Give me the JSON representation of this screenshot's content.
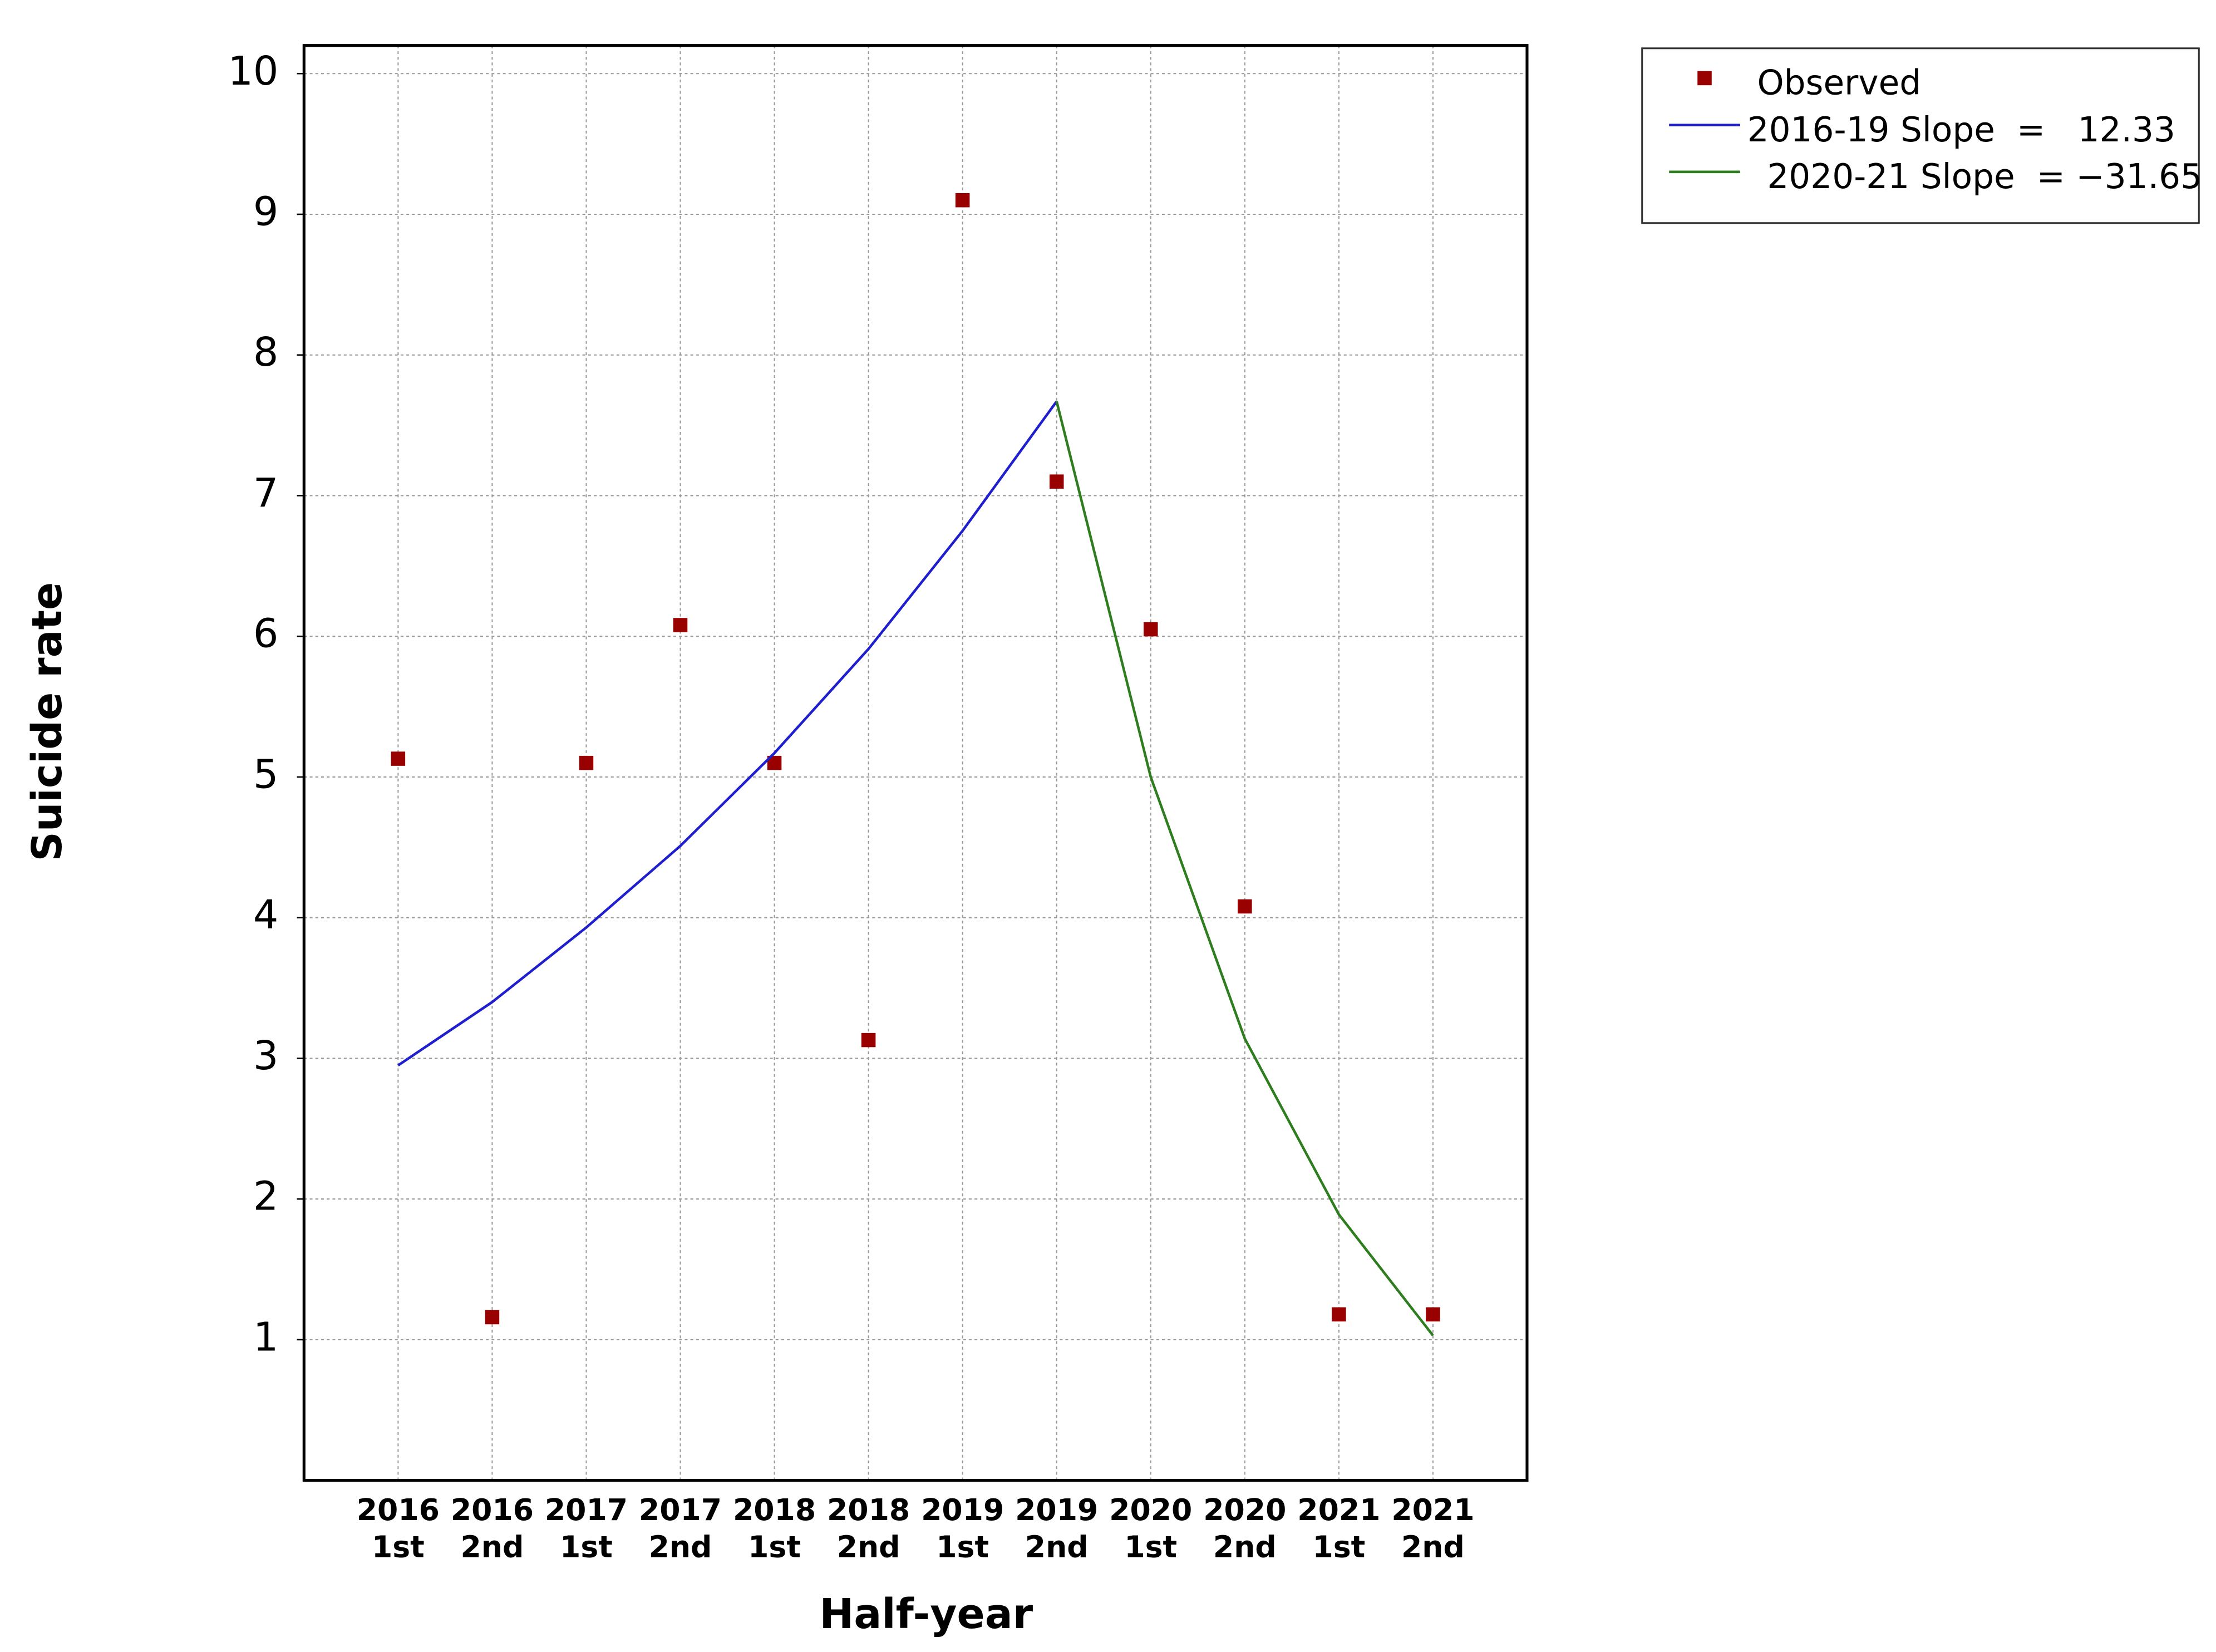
{
  "chart_data": {
    "type": "line",
    "xlabel": "Half-year",
    "ylabel": "Suicide rate",
    "categories": [
      [
        "2016",
        "1st"
      ],
      [
        "2016",
        "2nd"
      ],
      [
        "2017",
        "1st"
      ],
      [
        "2017",
        "2nd"
      ],
      [
        "2018",
        "1st"
      ],
      [
        "2018",
        "2nd"
      ],
      [
        "2019",
        "1st"
      ],
      [
        "2019",
        "2nd"
      ],
      [
        "2020",
        "1st"
      ],
      [
        "2020",
        "2nd"
      ],
      [
        "2021",
        "1st"
      ],
      [
        "2021",
        "2nd"
      ]
    ],
    "series": [
      {
        "name": "Observed",
        "mode": "markers",
        "color": "#990000",
        "values": [
          5.13,
          1.16,
          5.1,
          6.08,
          5.1,
          3.13,
          9.1,
          7.1,
          6.05,
          4.08,
          1.18,
          1.18
        ]
      },
      {
        "name": "2016-19 Slope  =   12.33",
        "mode": "lines",
        "color": "#1f1fcf",
        "values": [
          2.95,
          3.4,
          3.93,
          4.51,
          5.17,
          5.91,
          6.75,
          7.67,
          null,
          null,
          null,
          null
        ]
      },
      {
        "name": "2020-21 Slope  = −31.65",
        "mode": "lines",
        "color": "#2e7d1e",
        "values": [
          null,
          null,
          null,
          null,
          null,
          null,
          null,
          7.67,
          5.0,
          3.14,
          1.89,
          1.03
        ]
      }
    ],
    "ylim": [
      0,
      10.2
    ],
    "yticks": [
      1,
      2,
      3,
      4,
      5,
      6,
      7,
      8,
      9,
      10
    ],
    "grid": true,
    "legend": "outside-right"
  }
}
